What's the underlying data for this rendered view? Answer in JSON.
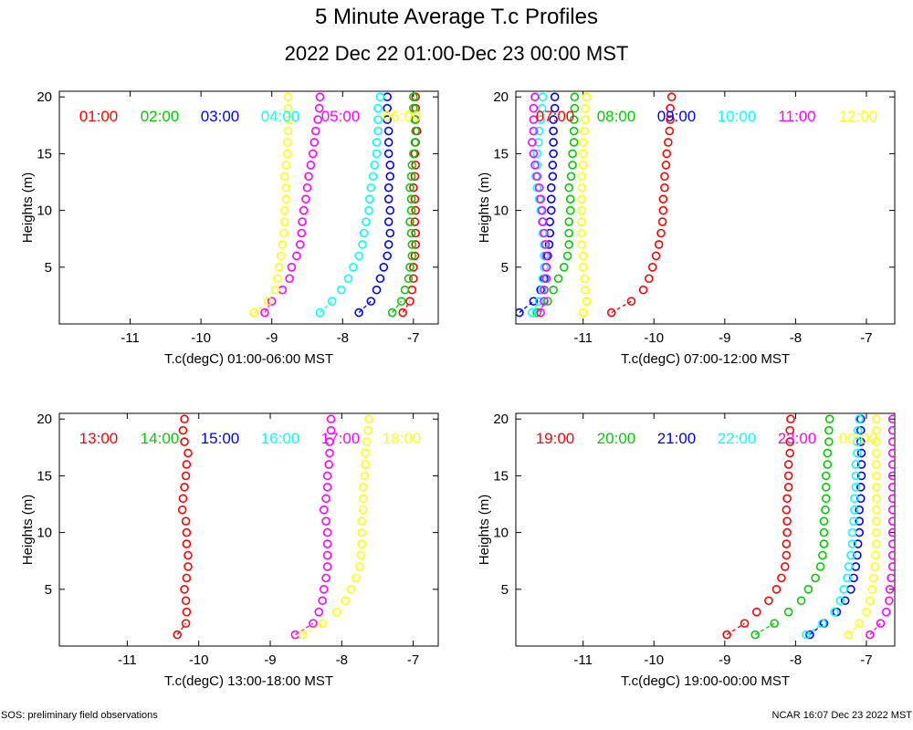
{
  "title": "5 Minute Average T.c Profiles",
  "subtitle": "2022 Dec 22 01:00-Dec 23 00:00 MST",
  "footer": {
    "left": "SOS: preliminary field observations",
    "right": "NCAR 16:07 Dec 23 2022 MST"
  },
  "chart_data": [
    {
      "type": "scatter",
      "xlabel": "T.c(degC) 01:00-06:00 MST",
      "ylabel": "Heights (m)",
      "xlim": [
        -12.0,
        -6.65
      ],
      "ylim": [
        0,
        20.5
      ],
      "xticks": [
        -11,
        -10,
        -9,
        -8,
        -7
      ],
      "yticks": [
        5,
        10,
        15,
        20
      ],
      "x_ticklabels": [
        "-11",
        "-10",
        "-9",
        "-8",
        "-7"
      ],
      "y_ticklabels": [
        "5",
        "10",
        "15",
        "20"
      ],
      "heights": [
        1,
        2,
        3,
        4,
        5,
        6,
        7,
        8,
        9,
        10,
        11,
        12,
        13,
        14,
        15,
        16,
        17,
        18,
        19,
        20
      ],
      "series": [
        {
          "name": "01:00",
          "color": "#ff0000",
          "values": [
            -7.15,
            -7.05,
            -7.02,
            -7.0,
            -7.0,
            -6.98,
            -6.97,
            -6.97,
            -6.98,
            -6.97,
            -6.98,
            -7.0,
            -6.98,
            -6.97,
            -6.98,
            -6.97,
            -6.95,
            -6.97,
            -6.97,
            -6.97
          ]
        },
        {
          "name": "02:00",
          "color": "#00cc00",
          "values": [
            -7.3,
            -7.17,
            -7.12,
            -7.07,
            -7.05,
            -7.02,
            -7.02,
            -7.03,
            -7.05,
            -7.03,
            -7.03,
            -7.05,
            -7.03,
            -7.02,
            -7.0,
            -6.98,
            -6.97,
            -6.98,
            -7.0,
            -7.0
          ]
        },
        {
          "name": "03:00",
          "color": "#0000ff",
          "values": [
            -7.77,
            -7.6,
            -7.52,
            -7.47,
            -7.42,
            -7.37,
            -7.35,
            -7.33,
            -7.35,
            -7.33,
            -7.35,
            -7.35,
            -7.33,
            -7.33,
            -7.35,
            -7.35,
            -7.35,
            -7.37,
            -7.37,
            -7.37
          ]
        },
        {
          "name": "04:00",
          "color": "#00ffff",
          "values": [
            -8.32,
            -8.15,
            -8.02,
            -7.92,
            -7.85,
            -7.77,
            -7.72,
            -7.7,
            -7.67,
            -7.63,
            -7.62,
            -7.6,
            -7.57,
            -7.55,
            -7.52,
            -7.52,
            -7.5,
            -7.5,
            -7.5,
            -7.47
          ]
        },
        {
          "name": "05:00",
          "color": "#ff00ff",
          "values": [
            -9.1,
            -9.0,
            -8.85,
            -8.75,
            -8.72,
            -8.65,
            -8.6,
            -8.58,
            -8.57,
            -8.55,
            -8.52,
            -8.5,
            -8.48,
            -8.45,
            -8.42,
            -8.4,
            -8.38,
            -8.35,
            -8.33,
            -8.32
          ]
        },
        {
          "name": "06:00",
          "color": "#ffff00",
          "values": [
            -9.25,
            -9.05,
            -8.95,
            -8.92,
            -8.9,
            -8.87,
            -8.85,
            -8.83,
            -8.82,
            -8.82,
            -8.8,
            -8.8,
            -8.82,
            -8.8,
            -8.78,
            -8.78,
            -8.77,
            -8.75,
            -8.77,
            -8.77
          ]
        }
      ]
    },
    {
      "type": "scatter",
      "xlabel": "T.c(degC) 07:00-12:00 MST",
      "ylabel": "Heights (m)",
      "xlim": [
        -11.95,
        -6.6
      ],
      "ylim": [
        0,
        20.5
      ],
      "xticks": [
        -11,
        -10,
        -9,
        -8,
        -7
      ],
      "yticks": [
        5,
        10,
        15,
        20
      ],
      "x_ticklabels": [
        "-11",
        "-10",
        "-9",
        "-8",
        "-7"
      ],
      "y_ticklabels": [
        "5",
        "10",
        "15",
        "20"
      ],
      "heights": [
        1,
        2,
        3,
        4,
        5,
        6,
        7,
        8,
        9,
        10,
        11,
        12,
        13,
        14,
        15,
        16,
        17,
        18,
        19,
        20
      ],
      "series": [
        {
          "name": "07:00",
          "color": "#ff0000",
          "values": [
            -10.6,
            -10.32,
            -10.15,
            -10.07,
            -10.02,
            -9.97,
            -9.93,
            -9.9,
            -9.88,
            -9.87,
            -9.87,
            -9.85,
            -9.85,
            -9.83,
            -9.82,
            -9.8,
            -9.78,
            -9.77,
            -9.77,
            -9.75
          ]
        },
        {
          "name": "08:00",
          "color": "#00cc00",
          "values": [
            -11.65,
            -11.5,
            -11.42,
            -11.35,
            -11.27,
            -11.22,
            -11.2,
            -11.2,
            -11.2,
            -11.18,
            -11.18,
            -11.2,
            -11.17,
            -11.15,
            -11.15,
            -11.13,
            -11.13,
            -11.13,
            -11.12,
            -11.12
          ]
        },
        {
          "name": "09:00",
          "color": "#0000ff",
          "values": [
            -11.9,
            -11.7,
            -11.6,
            -11.55,
            -11.52,
            -11.5,
            -11.48,
            -11.47,
            -11.47,
            -11.45,
            -11.45,
            -11.45,
            -11.43,
            -11.43,
            -11.42,
            -11.42,
            -11.42,
            -11.42,
            -11.4,
            -11.4
          ]
        },
        {
          "name": "10:00",
          "color": "#00ffff",
          "values": [
            -11.72,
            -11.62,
            -11.58,
            -11.57,
            -11.55,
            -11.55,
            -11.55,
            -11.57,
            -11.58,
            -11.6,
            -11.62,
            -11.65,
            -11.67,
            -11.65,
            -11.65,
            -11.63,
            -11.62,
            -11.6,
            -11.58,
            -11.57
          ]
        },
        {
          "name": "11:00",
          "color": "#ff00ff",
          "values": [
            -11.6,
            -11.55,
            -11.55,
            -11.52,
            -11.52,
            -11.52,
            -11.53,
            -11.55,
            -11.57,
            -11.58,
            -11.6,
            -11.62,
            -11.65,
            -11.68,
            -11.7,
            -11.72,
            -11.7,
            -11.7,
            -11.7,
            -11.68
          ]
        },
        {
          "name": "12:00",
          "color": "#ffff00",
          "values": [
            -11.0,
            -10.95,
            -10.97,
            -10.98,
            -11.0,
            -11.0,
            -11.02,
            -11.02,
            -11.02,
            -11.02,
            -11.02,
            -11.02,
            -11.02,
            -11.0,
            -11.0,
            -11.0,
            -10.98,
            -10.97,
            -10.97,
            -10.95
          ]
        }
      ]
    },
    {
      "type": "scatter",
      "xlabel": "T.c(degC) 13:00-18:00 MST",
      "ylabel": "Heights (m)",
      "xlim": [
        -11.95,
        -6.65
      ],
      "ylim": [
        0,
        20.5
      ],
      "xticks": [
        -11,
        -10,
        -9,
        -8,
        -7
      ],
      "yticks": [
        5,
        10,
        15,
        20
      ],
      "x_ticklabels": [
        "-11",
        "-10",
        "-9",
        "-8",
        "-7"
      ],
      "y_ticklabels": [
        "5",
        "10",
        "15",
        "20"
      ],
      "heights": [
        1,
        2,
        3,
        4,
        5,
        6,
        7,
        8,
        9,
        10,
        11,
        12,
        13,
        14,
        15,
        16,
        17,
        18,
        19,
        20
      ],
      "series": [
        {
          "name": "13:00",
          "color": "#ff0000",
          "values": [
            -10.3,
            -10.18,
            -10.17,
            -10.18,
            -10.2,
            -10.17,
            -10.15,
            -10.15,
            -10.17,
            -10.17,
            -10.18,
            -10.23,
            -10.22,
            -10.2,
            -10.18,
            -10.17,
            -10.15,
            -10.2,
            -10.22,
            -10.2
          ]
        },
        {
          "name": "14:00",
          "color": "#00cc00",
          "values": []
        },
        {
          "name": "15:00",
          "color": "#0000ff",
          "values": []
        },
        {
          "name": "16:00",
          "color": "#00ffff",
          "values": []
        },
        {
          "name": "17:00",
          "color": "#ff00ff",
          "values": [
            -8.65,
            -8.4,
            -8.32,
            -8.27,
            -8.25,
            -8.22,
            -8.2,
            -8.2,
            -8.2,
            -8.2,
            -8.22,
            -8.25,
            -8.22,
            -8.2,
            -8.2,
            -8.18,
            -8.17,
            -8.17,
            -8.15,
            -8.15
          ]
        },
        {
          "name": "18:00",
          "color": "#ffff00",
          "values": [
            -8.55,
            -8.27,
            -8.07,
            -7.95,
            -7.87,
            -7.8,
            -7.75,
            -7.73,
            -7.72,
            -7.72,
            -7.72,
            -7.7,
            -7.7,
            -7.7,
            -7.68,
            -7.67,
            -7.67,
            -7.65,
            -7.63,
            -7.62
          ]
        }
      ]
    },
    {
      "type": "scatter",
      "xlabel": "T.c(degC) 19:00-00:00 MST",
      "ylabel": "Heights (m)",
      "xlim": [
        -11.95,
        -6.6
      ],
      "ylim": [
        0,
        20.5
      ],
      "xticks": [
        -11,
        -10,
        -9,
        -8,
        -7
      ],
      "yticks": [
        5,
        10,
        15,
        20
      ],
      "x_ticklabels": [
        "-11",
        "-10",
        "-9",
        "-8",
        "-7"
      ],
      "y_ticklabels": [
        "5",
        "10",
        "15",
        "20"
      ],
      "heights": [
        1,
        2,
        3,
        4,
        5,
        6,
        7,
        8,
        9,
        10,
        11,
        12,
        13,
        14,
        15,
        16,
        17,
        18,
        19,
        20
      ],
      "series": [
        {
          "name": "19:00",
          "color": "#ff0000",
          "values": [
            -8.97,
            -8.72,
            -8.55,
            -8.38,
            -8.27,
            -8.2,
            -8.15,
            -8.13,
            -8.13,
            -8.12,
            -8.12,
            -8.13,
            -8.12,
            -8.1,
            -8.1,
            -8.1,
            -8.08,
            -8.08,
            -8.08,
            -8.07
          ]
        },
        {
          "name": "20:00",
          "color": "#00cc00",
          "values": [
            -8.57,
            -8.3,
            -8.1,
            -7.92,
            -7.82,
            -7.72,
            -7.65,
            -7.62,
            -7.6,
            -7.6,
            -7.6,
            -7.58,
            -7.57,
            -7.57,
            -7.57,
            -7.55,
            -7.55,
            -7.53,
            -7.53,
            -7.52
          ]
        },
        {
          "name": "21:00",
          "color": "#0000ff",
          "values": [
            -7.8,
            -7.6,
            -7.42,
            -7.3,
            -7.22,
            -7.18,
            -7.15,
            -7.13,
            -7.12,
            -7.1,
            -7.1,
            -7.1,
            -7.08,
            -7.08,
            -7.07,
            -7.07,
            -7.07,
            -7.08,
            -7.08,
            -7.08
          ]
        },
        {
          "name": "22:00",
          "color": "#00ffff",
          "values": [
            -7.85,
            -7.62,
            -7.45,
            -7.37,
            -7.32,
            -7.27,
            -7.25,
            -7.22,
            -7.2,
            -7.2,
            -7.18,
            -7.17,
            -7.17,
            -7.15,
            -7.15,
            -7.15,
            -7.13,
            -7.13,
            -7.12,
            -7.1
          ]
        },
        {
          "name": "23:00",
          "color": "#ff00ff",
          "values": [
            -6.95,
            -6.8,
            -6.72,
            -6.68,
            -6.67,
            -6.65,
            -6.63,
            -6.63,
            -6.63,
            -6.63,
            -6.63,
            -6.63,
            -6.63,
            -6.63,
            -6.63,
            -6.63,
            -6.63,
            -6.63,
            -6.63,
            -6.63
          ]
        },
        {
          "name": "00:00",
          "color": "#ffff00",
          "values": [
            -7.25,
            -7.1,
            -7.0,
            -6.95,
            -6.92,
            -6.9,
            -6.88,
            -6.87,
            -6.86,
            -6.86,
            -6.86,
            -6.86,
            -6.86,
            -6.86,
            -6.86,
            -6.86,
            -6.86,
            -6.86,
            -6.86,
            -6.86
          ]
        }
      ]
    }
  ]
}
